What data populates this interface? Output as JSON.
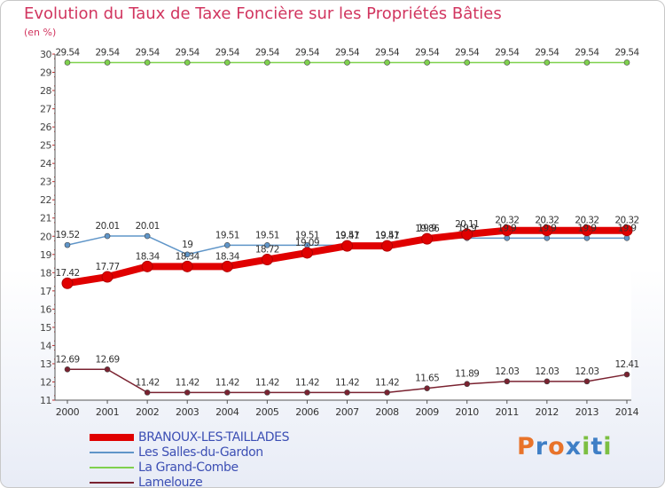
{
  "chart_data": {
    "type": "line",
    "title": "Evolution du Taux de Taxe Foncière sur les Propriétés Bâties",
    "ylabel": "(en %)",
    "xlabel": "",
    "categories": [
      "2000",
      "2001",
      "2002",
      "2003",
      "2004",
      "2005",
      "2006",
      "2007",
      "2008",
      "2009",
      "2010",
      "2011",
      "2012",
      "2013",
      "2014"
    ],
    "ylim": [
      11,
      30
    ],
    "yticks": [
      "11",
      "12",
      "13",
      "14",
      "15",
      "16",
      "17",
      "18",
      "19",
      "20",
      "21",
      "22",
      "23",
      "24",
      "25",
      "26",
      "27",
      "28",
      "29",
      "30"
    ],
    "series": [
      {
        "name": "BRANOUX-LES-TAILLADES",
        "color": "#e00000",
        "emphasis": "thick",
        "values": [
          17.42,
          17.77,
          18.34,
          18.34,
          18.34,
          18.72,
          19.09,
          19.47,
          19.47,
          19.86,
          20.11,
          20.32,
          20.32,
          20.32,
          20.32
        ],
        "labels": [
          "17.42",
          "17.77",
          "18.34",
          "18.34",
          "18.34",
          "18.72",
          "19.09",
          "19.47",
          "19.47",
          "19.86",
          "20.11",
          "20.32",
          "20.32",
          "20.32",
          "20.32"
        ]
      },
      {
        "name": "Les Salles-du-Gardon",
        "color": "#5f95c8",
        "values": [
          19.52,
          20.01,
          20.01,
          19,
          19.51,
          19.51,
          19.51,
          19.51,
          19.51,
          19.9,
          19.9,
          19.9,
          19.9,
          19.9,
          19.9
        ],
        "labels": [
          "19.52",
          "20.01",
          "20.01",
          "19",
          "19.51",
          "19.51",
          "19.51",
          "19.51",
          "19.51",
          "19.9",
          "19.9",
          "19.9",
          "19.9",
          "19.9",
          "19.9"
        ]
      },
      {
        "name": "La Grand-Combe",
        "color": "#7fd14e",
        "values": [
          29.54,
          29.54,
          29.54,
          29.54,
          29.54,
          29.54,
          29.54,
          29.54,
          29.54,
          29.54,
          29.54,
          29.54,
          29.54,
          29.54,
          29.54
        ],
        "labels": [
          "29.54",
          "29.54",
          "29.54",
          "29.54",
          "29.54",
          "29.54",
          "29.54",
          "29.54",
          "29.54",
          "29.54",
          "29.54",
          "29.54",
          "29.54",
          "29.54",
          "29.54"
        ]
      },
      {
        "name": "Lamelouze",
        "color": "#7a2230",
        "values": [
          12.69,
          12.69,
          11.42,
          11.42,
          11.42,
          11.42,
          11.42,
          11.42,
          11.42,
          11.65,
          11.89,
          12.03,
          12.03,
          12.03,
          12.41
        ],
        "labels": [
          "12.69",
          "12.69",
          "11.42",
          "11.42",
          "11.42",
          "11.42",
          "11.42",
          "11.42",
          "11.42",
          "11.65",
          "11.89",
          "12.03",
          "12.03",
          "12.03",
          "12.41"
        ]
      }
    ]
  },
  "brand": {
    "name": "Proxiti",
    "letters": [
      "P",
      "r",
      "o",
      "x",
      "i",
      "t",
      "i"
    ],
    "colors": [
      "#e8732a",
      "#3f7fc6",
      "#e8732a",
      "#3f7fc6",
      "#7cbf42",
      "#3f7fc6",
      "#7cbf42"
    ]
  }
}
